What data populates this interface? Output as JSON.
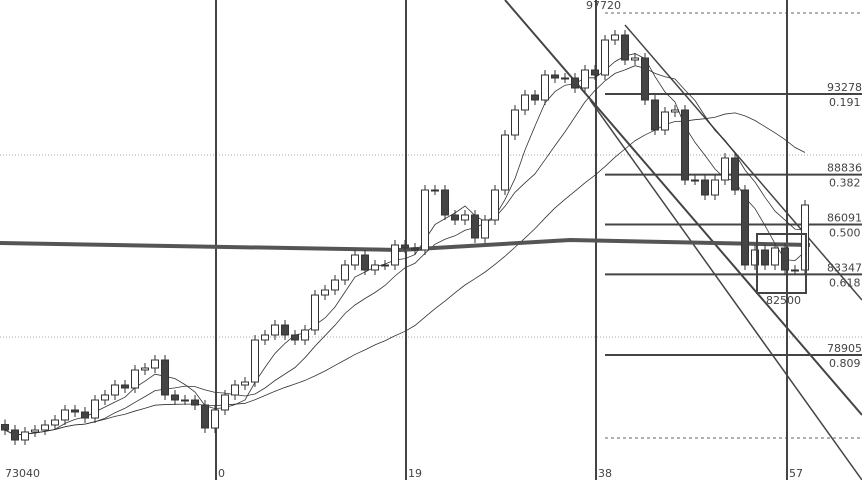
{
  "chart_data": {
    "type": "candlestick",
    "title": "",
    "y_scale": "linear",
    "grid": false,
    "closes": [
      74775,
      74224,
      74665,
      74775,
      75050,
      75326,
      75877,
      75766,
      75436,
      76427,
      76703,
      77253,
      77088,
      78079,
      78189,
      78630,
      76703,
      76427,
      76427,
      76152,
      74885,
      75877,
      76703,
      77253,
      77418,
      79731,
      80007,
      80556,
      80007,
      79731,
      80282,
      82208,
      82485,
      83035,
      83862,
      84412,
      83586,
      83862,
      83862,
      84963,
      84798,
      84688,
      87992,
      87992,
      86615,
      86340,
      86615,
      85348,
      86340,
      87992,
      91020,
      92398,
      93223,
      92948,
      94325,
      94160,
      94160,
      93609,
      94600,
      94325,
      96252,
      96527,
      95151,
      95261,
      92948,
      91296,
      92287,
      92398,
      88542,
      88542,
      87716,
      88542,
      89754,
      87992,
      83862,
      84688,
      83862,
      84798,
      83586,
      83586,
      87166
    ],
    "long_ma": [
      85074,
      84688,
      85238,
      84963
    ],
    "high_label": "97720",
    "low_box_label": "82500",
    "start_label": "73040",
    "fib_levels": [
      {
        "price": "93278",
        "ratio": "0.191"
      },
      {
        "price": "88836",
        "ratio": "0.382"
      },
      {
        "price": "86091",
        "ratio": "0.500"
      },
      {
        "price": "83347",
        "ratio": "0.618"
      },
      {
        "price": "78905",
        "ratio": "0.809"
      }
    ],
    "vertical_markers": [
      "0",
      "19",
      "38",
      "57"
    ],
    "colors": {
      "bull": "#ffffff",
      "bear": "#444444",
      "line": "#333333"
    }
  }
}
